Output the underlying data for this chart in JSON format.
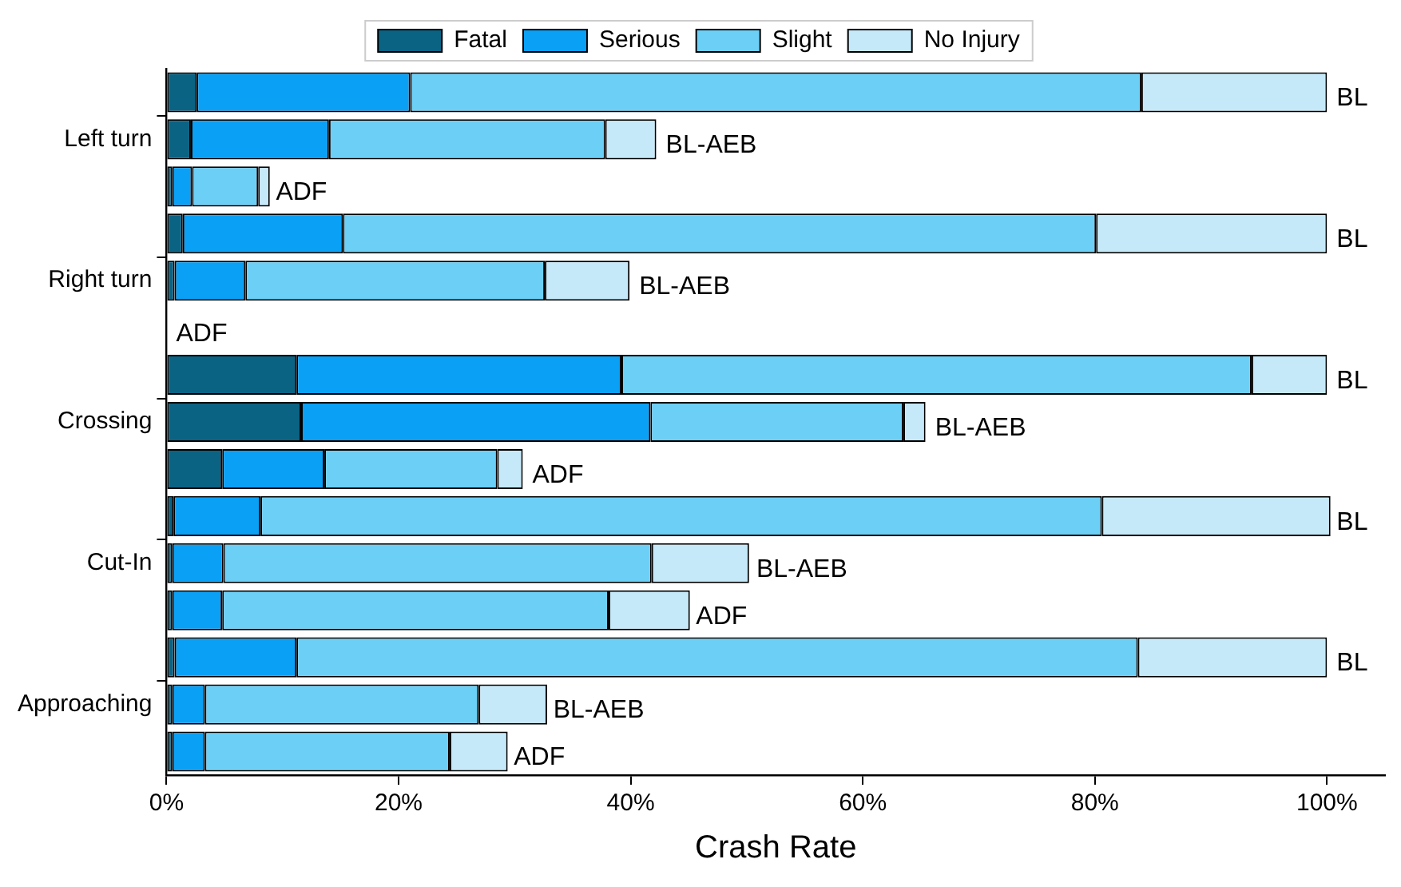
{
  "chart_data": {
    "type": "bar",
    "orientation": "horizontal",
    "stacked": true,
    "xlabel": "Crash Rate",
    "categories": [
      null,
      "Left turn",
      null,
      null,
      "Right turn",
      null,
      null,
      "Crossing",
      null,
      null,
      "Cut-In",
      null,
      null,
      "Approaching",
      null
    ],
    "series": [
      {
        "name": "Fatal",
        "color": "#0b6384",
        "values": [
          2.6,
          2.1,
          0.5,
          1.4,
          0.7,
          0,
          11.2,
          11.6,
          4.8,
          0.6,
          0.5,
          0.5,
          0.7,
          0.5,
          0.5
        ]
      },
      {
        "name": "Serious",
        "color": "#0aa0f6",
        "values": [
          18.4,
          11.9,
          1.7,
          13.8,
          6.1,
          0,
          28.0,
          30.1,
          8.8,
          7.5,
          4.4,
          4.3,
          10.5,
          2.8,
          2.8
        ]
      },
      {
        "name": "Slight",
        "color": "#6ccff6",
        "values": [
          63.0,
          23.8,
          5.7,
          64.9,
          25.8,
          0,
          54.3,
          21.8,
          14.9,
          72.5,
          36.9,
          33.3,
          72.5,
          23.6,
          21.1
        ]
      },
      {
        "name": "No Injury",
        "color": "#c5e9f9",
        "values": [
          16.0,
          4.4,
          1.0,
          19.9,
          7.3,
          0,
          6.5,
          1.9,
          2.2,
          19.7,
          8.4,
          7.0,
          16.3,
          5.9,
          5.0
        ]
      }
    ],
    "annotations": [
      {
        "text": "BL",
        "x": 100
      },
      {
        "text": "BL-AEB",
        "x": 42.2
      },
      {
        "text": "ADF",
        "x": 8.6
      },
      {
        "text": "BL",
        "x": 100
      },
      {
        "text": "BL-AEB",
        "x": 39.9
      },
      {
        "text": "ADF",
        "x": 0
      },
      {
        "text": "BL",
        "x": 100
      },
      {
        "text": "BL-AEB",
        "x": 65.4
      },
      {
        "text": "ADF",
        "x": 30.7
      },
      {
        "text": "BL",
        "x": 100
      },
      {
        "text": "BL-AEB",
        "x": 50
      },
      {
        "text": "ADF",
        "x": 44.8
      },
      {
        "text": "BL",
        "x": 100
      },
      {
        "text": "BL-AEB",
        "x": 32.5
      },
      {
        "text": "ADF",
        "x": 29.1
      }
    ],
    "xlim": [
      0,
      105
    ],
    "xticks": [
      {
        "value": 0,
        "label": "0%"
      },
      {
        "value": 20,
        "label": "20%"
      },
      {
        "value": 40,
        "label": "40%"
      },
      {
        "value": 60,
        "label": "60%"
      },
      {
        "value": 80,
        "label": "80%"
      },
      {
        "value": 100,
        "label": "100%"
      }
    ],
    "grid": false,
    "legend": "top"
  }
}
